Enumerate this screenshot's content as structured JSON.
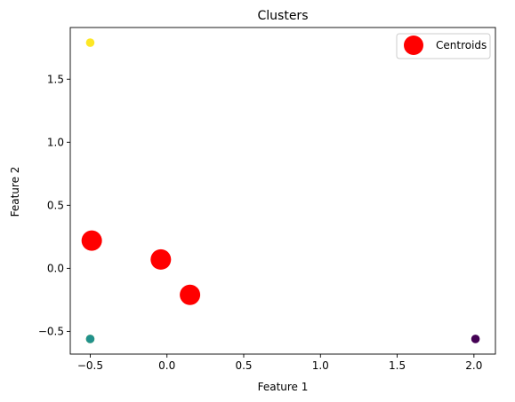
{
  "chart_data": {
    "type": "scatter",
    "title": "Clusters",
    "xlabel": "Feature 1",
    "ylabel": "Feature 2",
    "xlim": [
      -0.63,
      2.14
    ],
    "ylim": [
      -0.68,
      1.91
    ],
    "xticks": [
      -0.5,
      0.0,
      0.5,
      1.0,
      1.5,
      2.0
    ],
    "xtick_labels": [
      "−0.5",
      "0.0",
      "0.5",
      "1.0",
      "1.5",
      "2.0"
    ],
    "yticks": [
      -0.5,
      0.0,
      0.5,
      1.0,
      1.5
    ],
    "ytick_labels": [
      "−0.5",
      "0.0",
      "0.5",
      "1.0",
      "1.5"
    ],
    "grid": false,
    "legend_position": "top-right",
    "points": [
      {
        "x": -0.5,
        "y": 1.79,
        "cluster": 2
      },
      {
        "x": -0.5,
        "y": -0.56,
        "cluster": 2
      },
      {
        "x": -0.5,
        "y": -0.56,
        "cluster": 1
      },
      {
        "x": 2.01,
        "y": -0.56,
        "cluster": 0
      }
    ],
    "cluster_colors": [
      "#440154",
      "#21918c",
      "#fde725"
    ],
    "series": [
      {
        "name": "Centroids",
        "color": "#ff0000",
        "x": [
          -0.49,
          -0.04,
          0.15
        ],
        "y": [
          0.22,
          0.07,
          -0.21
        ]
      }
    ]
  }
}
